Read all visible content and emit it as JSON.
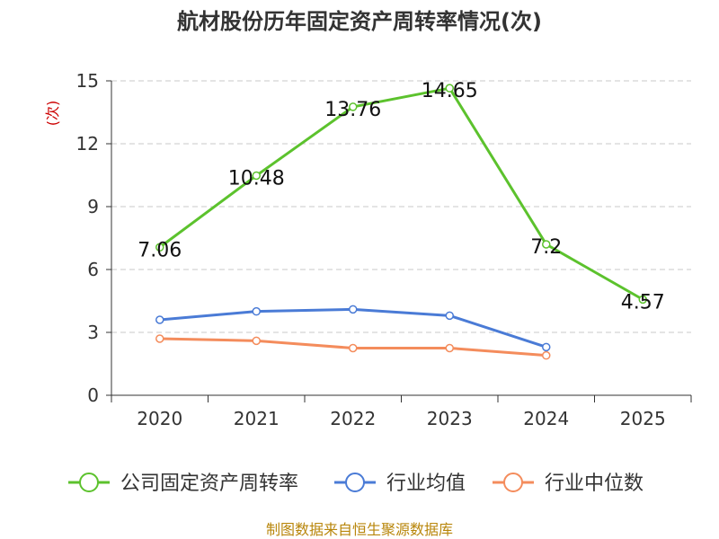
{
  "chart_data": {
    "type": "line",
    "title": "航材股份历年固定资产周转率情况(次)",
    "ylabel": "(次)",
    "x": [
      "2020",
      "2021",
      "2022",
      "2023",
      "2024",
      "2025"
    ],
    "ylim": [
      0,
      15
    ],
    "yticks": [
      0,
      3,
      6,
      9,
      12,
      15
    ],
    "grid": "horizontal dashed",
    "legend_position": "bottom",
    "series": [
      {
        "name": "公司固定资产周转率",
        "color": "#5cc22d",
        "values": [
          7.06,
          10.48,
          13.76,
          14.65,
          7.2,
          4.57
        ],
        "labels": [
          "7.06",
          "10.48",
          "13.76",
          "14.65",
          "7.2",
          "4.57"
        ]
      },
      {
        "name": "行业均值",
        "color": "#4a7bd6",
        "values": [
          3.6,
          4.0,
          4.1,
          3.8,
          2.3,
          null
        ]
      },
      {
        "name": "行业中位数",
        "color": "#f48c5c",
        "values": [
          2.7,
          2.6,
          2.25,
          2.25,
          1.9,
          null
        ]
      }
    ],
    "source": "制图数据来自恒生聚源数据库"
  }
}
